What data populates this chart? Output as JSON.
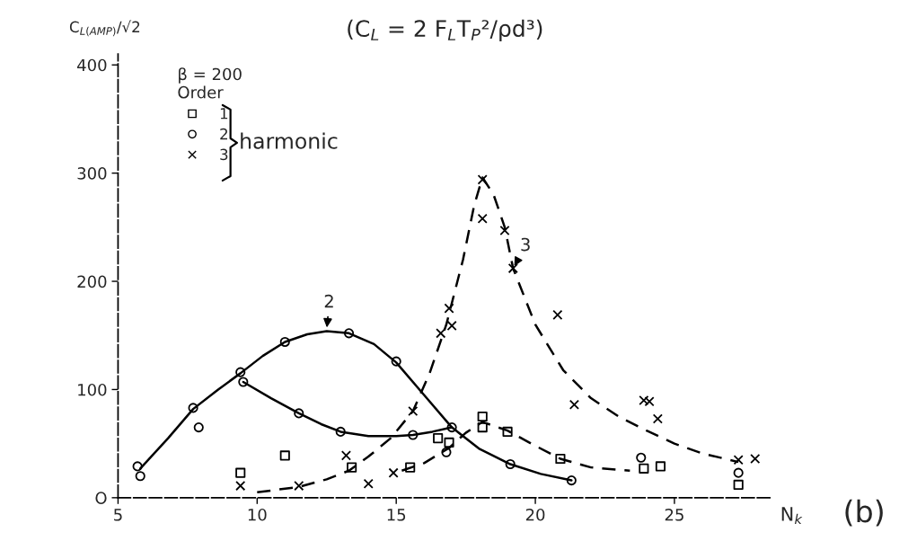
{
  "chart_data": {
    "type": "scatter",
    "title": "(C$_{L}$ = 2 F$_{L}$T$_{P}$²/ρd³)",
    "xlabel": "N$_{k}$",
    "ylabel": "C$_{L(AMP)}$/√2",
    "legend_title": "β = 200\nOrder",
    "xlim": [
      5,
      28.5
    ],
    "xticks": [
      5,
      10,
      15,
      20,
      25
    ],
    "ylim": [
      0,
      410
    ],
    "yticks": [
      {
        "value": 0,
        "label": "O"
      },
      100,
      200,
      300,
      400
    ],
    "grid": false,
    "legend": "top left",
    "annotations": [
      {
        "text": "2",
        "x": 12.5,
        "y": 155
      },
      {
        "text": "3",
        "x": 19.2,
        "y": 212
      },
      "harmonic",
      "(b)"
    ],
    "series": [
      {
        "name": "1",
        "marker": "square",
        "color": "#000000",
        "x": [
          9.4,
          11.0,
          13.4,
          15.5,
          16.5,
          16.9,
          18.1,
          18.1,
          19.0,
          20.9,
          23.9,
          24.5,
          27.3
        ],
        "values": [
          23,
          39,
          28,
          28,
          55,
          51,
          75,
          65,
          61,
          36,
          27,
          29,
          12
        ]
      },
      {
        "name": "2",
        "marker": "circle",
        "color": "#000000",
        "x": [
          5.7,
          5.8,
          7.7,
          7.9,
          9.4,
          9.5,
          11.0,
          11.5,
          13.3,
          13.0,
          15.0,
          15.6,
          17.0,
          16.8,
          19.1,
          21.3,
          23.8,
          27.3
        ],
        "values": [
          29,
          20,
          83,
          65,
          116,
          107,
          144,
          78,
          152,
          61,
          126,
          58,
          65,
          42,
          31,
          16,
          37,
          23
        ]
      },
      {
        "name": "3",
        "marker": "cross",
        "color": "#000000",
        "x": [
          9.4,
          11.5,
          13.2,
          14.0,
          14.9,
          15.6,
          16.6,
          16.9,
          17.0,
          18.1,
          18.1,
          18.9,
          19.2,
          20.8,
          21.4,
          23.9,
          24.1,
          24.4,
          27.3,
          27.9
        ],
        "values": [
          11,
          11,
          39,
          13,
          23,
          80,
          152,
          175,
          159,
          294,
          258,
          247,
          212,
          169,
          86,
          90,
          89,
          73,
          35,
          36
        ]
      },
      {
        "type": "line",
        "line_style": "solid",
        "color": "#000000",
        "x": [
          5.8,
          6.8,
          7.7,
          8.6,
          9.4,
          10.2,
          11.0,
          11.8,
          12.5,
          13.3,
          14.2,
          15.0,
          16.0,
          17.0,
          18.0,
          19.1,
          20.2,
          21.3
        ],
        "values": [
          27,
          55,
          82,
          100,
          115,
          131,
          144,
          151,
          154,
          152,
          142,
          125,
          95,
          65,
          45,
          31,
          22,
          16
        ]
      },
      {
        "type": "line",
        "line_style": "solid",
        "color": "#000000",
        "x": [
          9.5,
          10.5,
          11.5,
          12.3,
          13.0,
          14.0,
          15.0,
          15.6,
          16.3,
          17.0
        ],
        "values": [
          107,
          92,
          78,
          68,
          61,
          57,
          57,
          58,
          61,
          65
        ]
      },
      {
        "type": "line",
        "line_style": "dashed",
        "color": "#000000",
        "x": [
          15.2,
          16.0,
          16.9,
          17.5,
          18.1,
          19.0,
          20.0,
          20.9,
          22.0,
          23.4
        ],
        "values": [
          25,
          32,
          46,
          60,
          70,
          62,
          48,
          36,
          28,
          25
        ]
      },
      {
        "type": "line",
        "line_style": "dashed",
        "color": "#000000",
        "x": [
          10.0,
          11.5,
          12.5,
          13.3,
          14.0,
          14.8,
          15.6,
          16.2,
          16.8,
          17.4,
          17.8,
          18.1,
          18.5,
          18.9,
          19.2,
          20.0,
          21.0,
          22.0,
          23.0,
          24.0,
          25.0,
          26.0,
          27.3
        ],
        "values": [
          5,
          10,
          17,
          25,
          38,
          55,
          80,
          115,
          160,
          220,
          270,
          296,
          280,
          250,
          212,
          160,
          118,
          92,
          75,
          62,
          50,
          41,
          33
        ]
      }
    ]
  }
}
